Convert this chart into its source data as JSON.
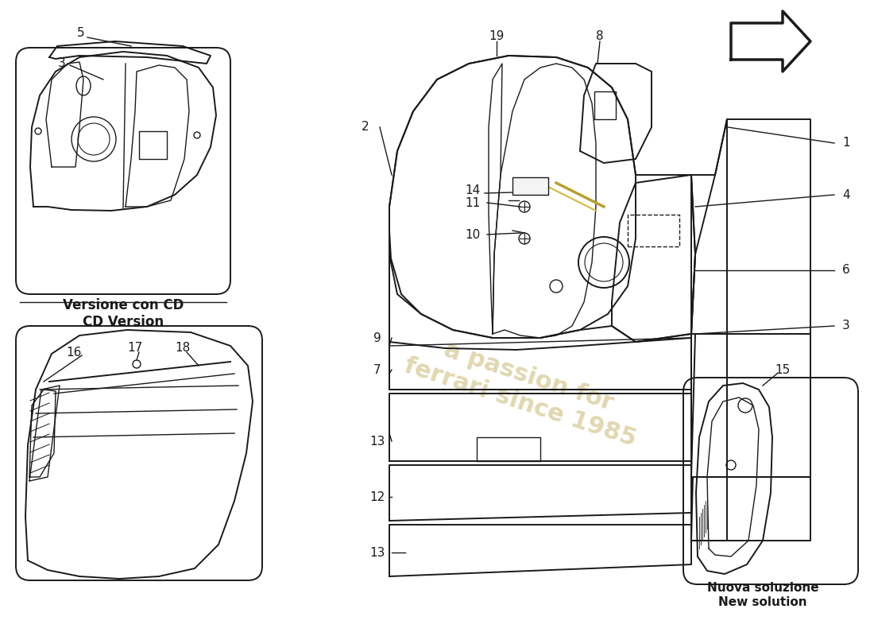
{
  "background_color": "#ffffff",
  "line_color": "#1a1a1a",
  "watermark_color": "#c8b870",
  "label_cd": "Versione con CD\nCD Version",
  "label_nuova_1": "Nuova soluzione",
  "label_nuova_2": "New solution",
  "figsize": [
    11.0,
    8.0
  ],
  "dpi": 100
}
